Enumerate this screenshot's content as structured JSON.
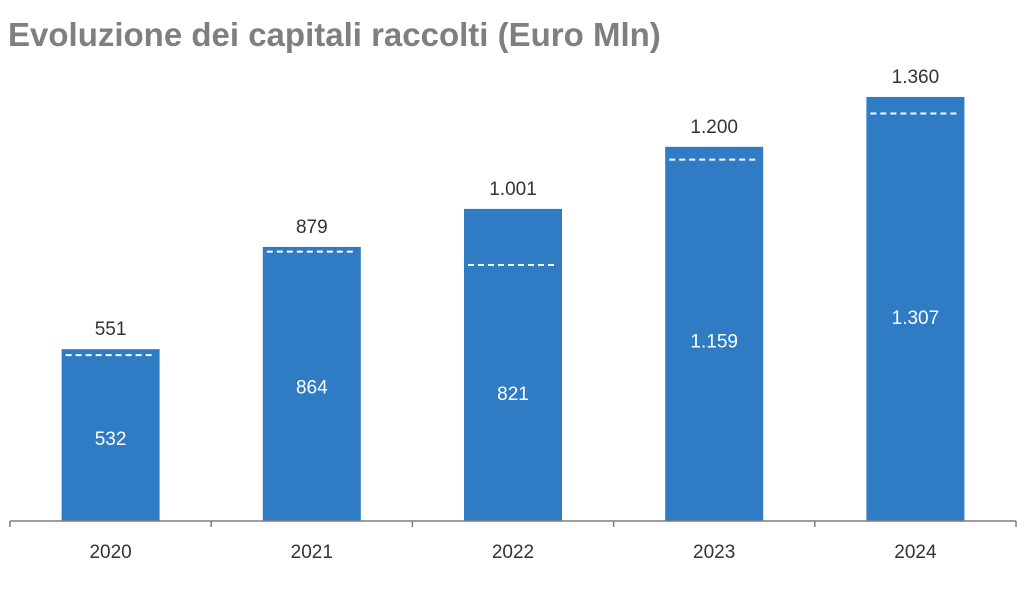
{
  "title": "Evoluzione dei capitali raccolti (Euro Mln)",
  "colors": {
    "bar": "#2f7bc4",
    "dashed_marker": "#ffffff",
    "axis": "#7f7f7f",
    "title": "#7f7f7f"
  },
  "chart_data": {
    "type": "bar",
    "title": "Evoluzione dei capitali raccolti (Euro Mln)",
    "categories": [
      "2020",
      "2021",
      "2022",
      "2023",
      "2024"
    ],
    "series": [
      {
        "values": [
          551,
          879,
          1001,
          1200,
          1360
        ],
        "display": [
          "551",
          "879",
          "1.001",
          "1.200",
          "1.360"
        ]
      },
      {
        "values": [
          532,
          864,
          821,
          1159,
          1307
        ],
        "display": [
          "532",
          "864",
          "821",
          "1.159",
          "1.307"
        ]
      }
    ],
    "ylim": [
      0,
      1400
    ],
    "grid": false,
    "legend": "none"
  }
}
